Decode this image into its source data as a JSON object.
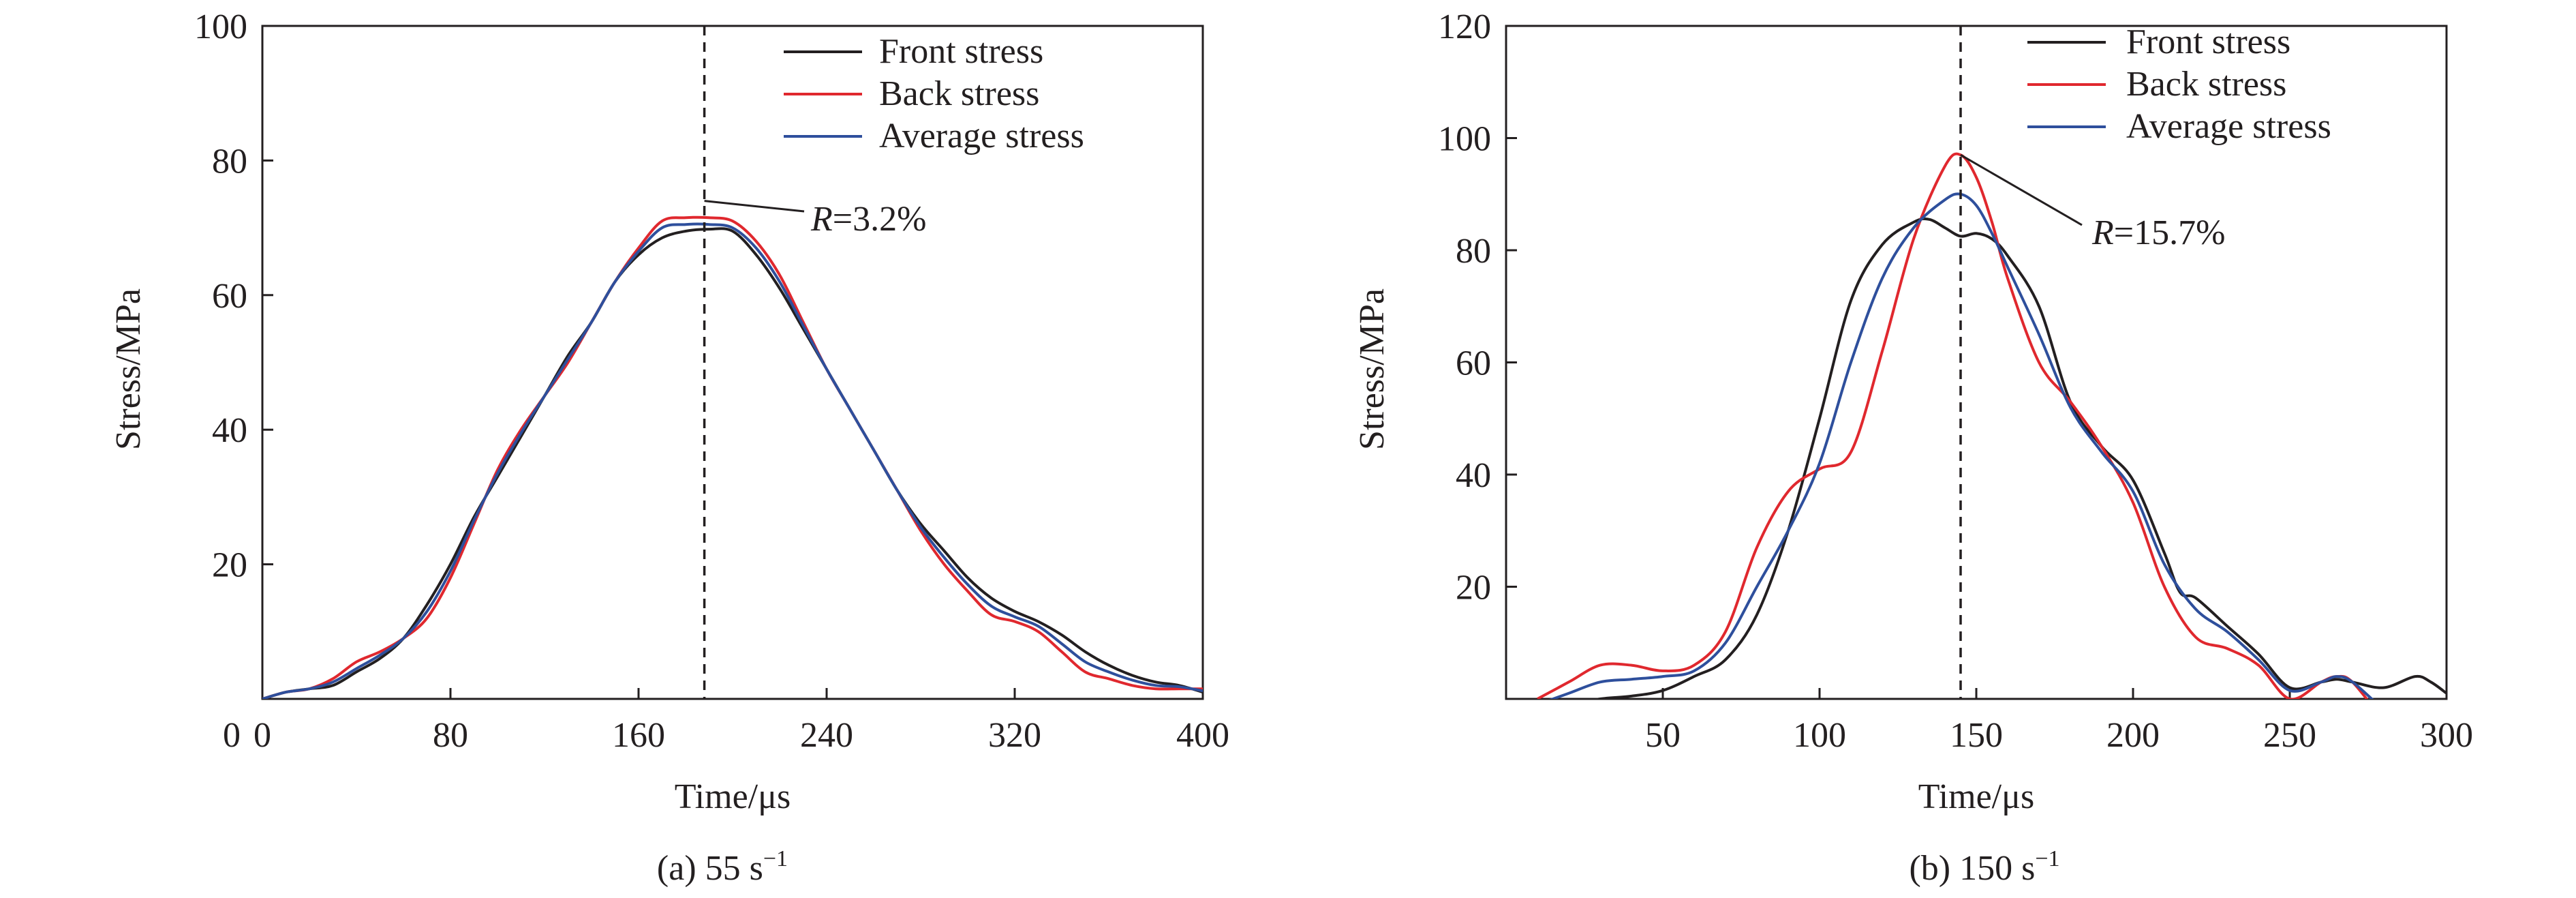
{
  "figure": {
    "captions": [
      {
        "prefix": "(a) 55 s",
        "sup": "−1"
      },
      {
        "prefix": "(b) 150 s",
        "sup": "−1"
      }
    ]
  },
  "series_colors": {
    "Front stress": "#231f20",
    "Back stress": "#e0282e",
    "Average stress": "#2e4f9c"
  },
  "chart_data": [
    {
      "type": "line",
      "xlabel": "Time/μs",
      "ylabel": "Stress/MPa",
      "xlim": [
        0,
        400
      ],
      "ylim": [
        0,
        100
      ],
      "xticks": [
        0,
        80,
        160,
        240,
        320,
        400
      ],
      "yticks": [
        20,
        40,
        60,
        80,
        100
      ],
      "x_origin_label": "0",
      "legend": {
        "position": "top-right",
        "entries": [
          "Front stress",
          "Back stress",
          "Average stress"
        ]
      },
      "marker_line_x": 188,
      "annotation": {
        "italic": "R",
        "text": "=3.2%",
        "x": 188,
        "y": 74
      },
      "series": [
        {
          "name": "Front stress",
          "x": [
            0,
            10,
            20,
            30,
            40,
            50,
            60,
            70,
            80,
            90,
            100,
            110,
            120,
            130,
            140,
            150,
            160,
            170,
            180,
            190,
            200,
            210,
            220,
            230,
            240,
            250,
            260,
            270,
            280,
            290,
            300,
            310,
            320,
            330,
            340,
            350,
            360,
            370,
            380,
            390,
            400
          ],
          "values": [
            0,
            1,
            1.5,
            2,
            4,
            6,
            9,
            14,
            20,
            27,
            33,
            39,
            45,
            51,
            56,
            62,
            66,
            68.5,
            69.5,
            69.8,
            69.5,
            66,
            61,
            55,
            49,
            43,
            37,
            31,
            26,
            22,
            18,
            15,
            13,
            11.5,
            9.5,
            7,
            5,
            3.5,
            2.5,
            2,
            1
          ]
        },
        {
          "name": "Back stress",
          "x": [
            0,
            10,
            20,
            30,
            40,
            50,
            60,
            70,
            80,
            90,
            100,
            110,
            120,
            130,
            140,
            150,
            160,
            170,
            180,
            190,
            200,
            210,
            220,
            230,
            240,
            250,
            260,
            270,
            280,
            290,
            300,
            310,
            320,
            330,
            340,
            350,
            360,
            370,
            380,
            390,
            400
          ],
          "values": [
            0,
            1,
            1.5,
            3,
            5.5,
            7,
            9,
            12,
            18,
            26,
            34,
            40,
            45,
            50,
            56,
            62,
            67,
            71,
            71.5,
            71.5,
            71,
            68,
            63,
            56,
            49,
            43,
            37,
            31,
            25,
            20,
            16,
            12.5,
            11.5,
            10,
            7,
            4,
            3,
            2,
            1.5,
            1.5,
            1.5
          ]
        },
        {
          "name": "Average stress",
          "x": [
            0,
            10,
            20,
            30,
            40,
            50,
            60,
            70,
            80,
            90,
            100,
            110,
            120,
            130,
            140,
            150,
            160,
            170,
            180,
            190,
            200,
            210,
            220,
            230,
            240,
            250,
            260,
            270,
            280,
            290,
            300,
            310,
            320,
            330,
            340,
            350,
            360,
            370,
            380,
            390,
            400
          ],
          "values": [
            0,
            1,
            1.5,
            2.5,
            4.5,
            6.5,
            9,
            13,
            19,
            26.5,
            33.5,
            39.5,
            45,
            50.5,
            56,
            62,
            66.5,
            70,
            70.5,
            70.5,
            70,
            67,
            62,
            55.5,
            49,
            43,
            37,
            31,
            25.5,
            21,
            17,
            13.8,
            12.2,
            10.8,
            8.2,
            5.5,
            4,
            2.8,
            2,
            1.8,
            1.2
          ]
        }
      ]
    },
    {
      "type": "line",
      "xlabel": "Time/μs",
      "ylabel": "Stress/MPa",
      "xlim": [
        0,
        300
      ],
      "ylim": [
        0,
        120
      ],
      "xticks": [
        50,
        100,
        150,
        200,
        250,
        300
      ],
      "yticks": [
        20,
        40,
        60,
        80,
        100,
        120
      ],
      "legend": {
        "position": "top-right",
        "entries": [
          "Front stress",
          "Back stress",
          "Average stress"
        ]
      },
      "marker_line_x": 145,
      "annotation": {
        "italic": "R",
        "text": "=15.7%",
        "x": 145,
        "y": 97
      },
      "series": [
        {
          "name": "Front stress",
          "x": [
            10,
            20,
            30,
            40,
            50,
            60,
            70,
            80,
            90,
            100,
            110,
            120,
            130,
            135,
            140,
            145,
            150,
            155,
            160,
            170,
            180,
            190,
            200,
            210,
            215,
            220,
            230,
            240,
            250,
            260,
            265,
            270,
            280,
            290,
            295,
            300
          ],
          "values": [
            -2,
            -1,
            0,
            0.5,
            1.5,
            4,
            7,
            15,
            30,
            50,
            71,
            81,
            85,
            85.5,
            84,
            82.5,
            83,
            82,
            79,
            70,
            53,
            45,
            39,
            26,
            19,
            18,
            13,
            8,
            2,
            3,
            3.5,
            3,
            2,
            4,
            3,
            1
          ]
        },
        {
          "name": "Back stress",
          "x": [
            10,
            20,
            30,
            40,
            50,
            60,
            70,
            80,
            90,
            100,
            110,
            120,
            130,
            140,
            145,
            150,
            155,
            160,
            170,
            180,
            190,
            200,
            210,
            220,
            230,
            240,
            250,
            260,
            265,
            270,
            280
          ],
          "values": [
            0,
            3,
            6,
            6,
            5,
            6,
            12,
            27,
            37,
            41,
            44,
            62,
            82,
            95,
            97,
            93,
            85,
            75,
            60,
            53,
            45,
            35,
            20,
            11,
            9,
            6,
            0,
            3,
            4,
            3,
            -4
          ]
        },
        {
          "name": "Average stress",
          "x": [
            10,
            20,
            30,
            40,
            50,
            60,
            70,
            80,
            90,
            100,
            110,
            120,
            130,
            140,
            145,
            150,
            155,
            160,
            170,
            180,
            190,
            200,
            210,
            220,
            230,
            240,
            250,
            260,
            265,
            270,
            280
          ],
          "values": [
            -1,
            1,
            3,
            3.5,
            4,
            5,
            10,
            20,
            30,
            42,
            60,
            75,
            84,
            89,
            90,
            88,
            83,
            77,
            65,
            52,
            44,
            37,
            24,
            16,
            12,
            7,
            1.5,
            3,
            4,
            3,
            -2
          ]
        }
      ]
    }
  ]
}
